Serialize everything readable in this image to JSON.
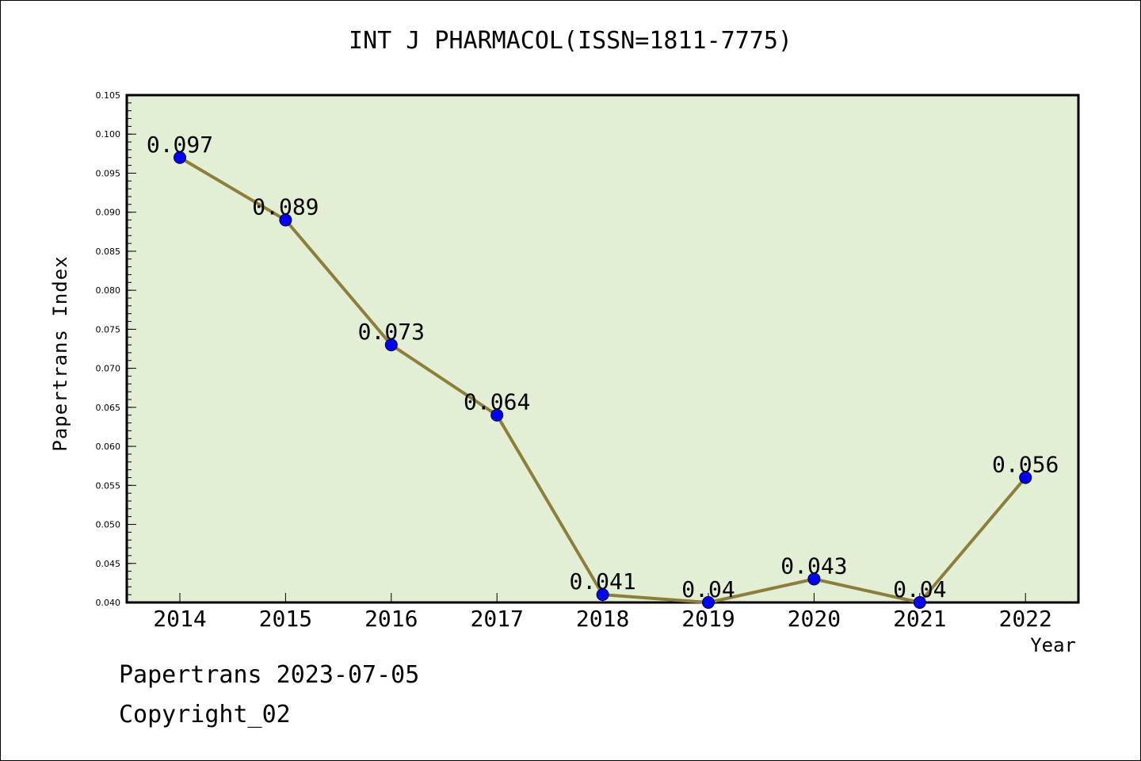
{
  "chart_data": {
    "type": "line",
    "title": "INT J PHARMACOL(ISSN=1811-7775)",
    "xlabel": "Year",
    "ylabel": "Papertrans Index",
    "categories": [
      "2014",
      "2015",
      "2016",
      "2017",
      "2018",
      "2019",
      "2020",
      "2021",
      "2022"
    ],
    "series": [
      {
        "values": [
          0.097,
          0.089,
          0.073,
          0.064,
          0.041,
          0.04,
          0.043,
          0.04,
          0.056
        ],
        "labels": [
          "0.097",
          "0.089",
          "0.073",
          "0.064",
          "0.041",
          "0.04",
          "0.043",
          "0.04",
          "0.056"
        ]
      }
    ],
    "ylim": [
      0.04,
      0.105
    ],
    "yticks": [
      "0.040",
      "0.045",
      "0.050",
      "0.055",
      "0.060",
      "0.065",
      "0.070",
      "0.075",
      "0.080",
      "0.085",
      "0.090",
      "0.095",
      "0.100",
      "0.105"
    ],
    "grid": false,
    "colors": {
      "plot_background": "#e2efd5",
      "line": "#8c7f3a",
      "marker": "#0000ff"
    }
  },
  "footer": {
    "date": "Papertrans 2023-07-05",
    "copyright": "Copyright_02"
  }
}
